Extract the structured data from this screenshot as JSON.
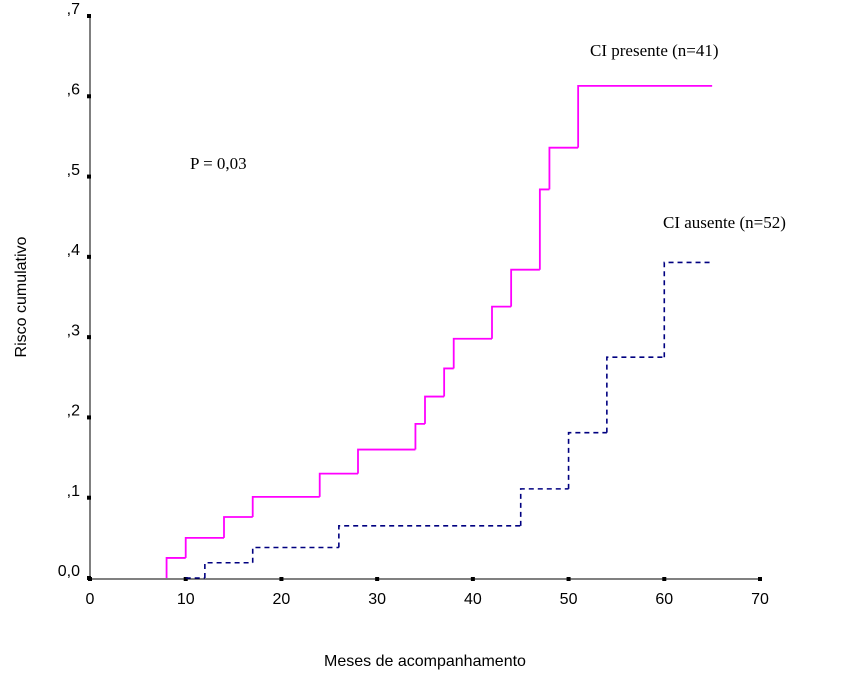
{
  "chart_data": {
    "type": "step",
    "annotation": "P = 0,03",
    "x_label": "Meses de acompanhamento",
    "y_label": "Risco cumulativo",
    "xlim": [
      0,
      70
    ],
    "xticks": [
      0,
      10,
      20,
      30,
      40,
      50,
      60,
      70
    ],
    "ylim": [
      0,
      0.7
    ],
    "yticks": [
      {
        "value": 0,
        "label": "0,0"
      },
      {
        "value": 0.1,
        "label": ",1"
      },
      {
        "value": 0.2,
        "label": ",2"
      },
      {
        "value": 0.3,
        "label": ",3"
      },
      {
        "value": 0.4,
        "label": ",4"
      },
      {
        "value": 0.5,
        "label": ",5"
      },
      {
        "value": 0.6,
        "label": ",6"
      },
      {
        "value": 0.7,
        "label": ",7"
      }
    ],
    "series": [
      {
        "name": "CI presente (n=41)",
        "color": "#ff00ff",
        "dashed": false,
        "x": [
          8,
          8,
          10,
          14,
          17,
          24,
          28,
          34,
          35,
          37,
          38,
          42,
          44,
          47,
          48,
          51,
          65
        ],
        "values": [
          0,
          0.025,
          0.05,
          0.076,
          0.101,
          0.13,
          0.16,
          0.192,
          0.226,
          0.261,
          0.298,
          0.338,
          0.384,
          0.484,
          0.536,
          0.613,
          0.613
        ]
      },
      {
        "name": "CI ausente (n=52)",
        "color": "#000080",
        "dashed": true,
        "x": [
          10,
          12,
          17,
          26,
          45,
          50,
          54,
          60,
          65
        ],
        "values": [
          0,
          0.019,
          0.038,
          0.065,
          0.111,
          0.181,
          0.275,
          0.393,
          0.393
        ]
      }
    ]
  }
}
